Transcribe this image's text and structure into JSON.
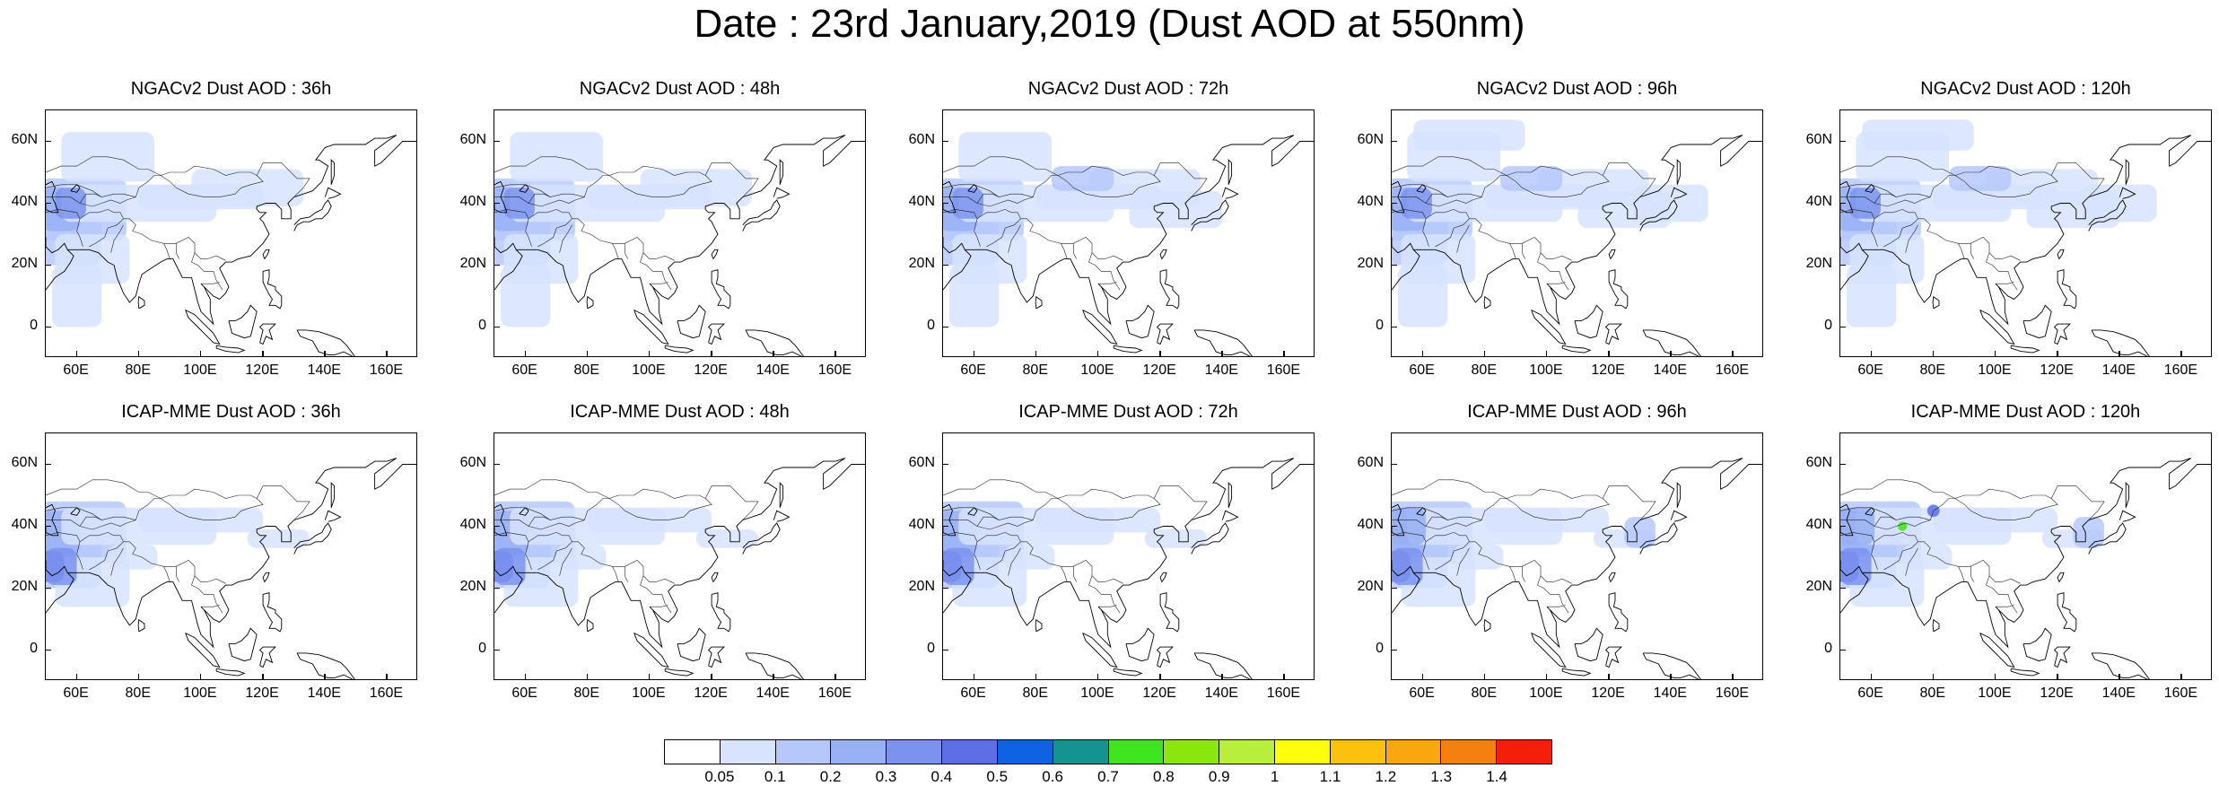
{
  "title": "Date : 23rd January,2019 (Dust AOD at 550nm)",
  "y_tick_labels": [
    "60N",
    "40N",
    "20N",
    "0"
  ],
  "x_tick_labels": [
    "60E",
    "80E",
    "100E",
    "120E",
    "140E",
    "160E"
  ],
  "map_extent": {
    "lon_min": 50,
    "lon_max": 170,
    "lat_min": -10,
    "lat_max": 70
  },
  "panels": [
    {
      "title": "NGACv2 Dust AOD : 36h",
      "model": "NGAC",
      "lead": 36
    },
    {
      "title": "NGACv2 Dust AOD : 48h",
      "model": "NGAC",
      "lead": 48
    },
    {
      "title": "NGACv2 Dust AOD : 72h",
      "model": "NGAC",
      "lead": 72
    },
    {
      "title": "NGACv2 Dust AOD : 96h",
      "model": "NGAC",
      "lead": 96
    },
    {
      "title": "NGACv2 Dust AOD : 120h",
      "model": "NGAC",
      "lead": 120
    },
    {
      "title": "ICAP-MME Dust AOD : 36h",
      "model": "ICAP",
      "lead": 36
    },
    {
      "title": "ICAP-MME Dust AOD : 48h",
      "model": "ICAP",
      "lead": 48
    },
    {
      "title": "ICAP-MME Dust AOD : 72h",
      "model": "ICAP",
      "lead": 72
    },
    {
      "title": "ICAP-MME Dust AOD : 96h",
      "model": "ICAP",
      "lead": 96
    },
    {
      "title": "ICAP-MME Dust AOD : 120h",
      "model": "ICAP",
      "lead": 120
    }
  ],
  "colorbar": {
    "labels": [
      "0.05",
      "0.1",
      "0.2",
      "0.3",
      "0.4",
      "0.5",
      "0.6",
      "0.7",
      "0.8",
      "0.9",
      "1",
      "1.1",
      "1.2",
      "1.3",
      "1.4"
    ],
    "colors": [
      "#ffffff",
      "#d7e3ff",
      "#b6c8fb",
      "#98b0f5",
      "#7b93ee",
      "#5e6ee6",
      "#0f63e3",
      "#13948f",
      "#3fe51e",
      "#8ae60d",
      "#b9ee3a",
      "#fbff0c",
      "#fbc10e",
      "#faa60e",
      "#f6800f",
      "#f41f0a"
    ]
  }
}
